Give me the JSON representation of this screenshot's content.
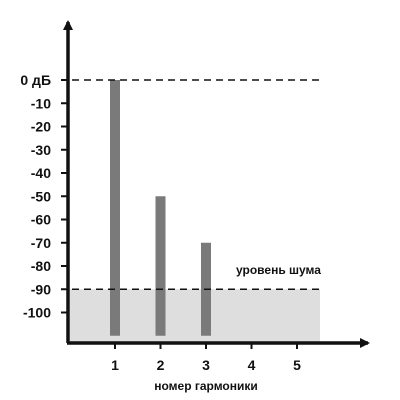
{
  "chart_data": {
    "type": "bar",
    "xlabel": "номер гармоники",
    "ylabel": "",
    "x_ticks": [
      "1",
      "2",
      "3",
      "4",
      "5"
    ],
    "y_ticks": [
      "0 дБ",
      "-10",
      "-20",
      "-30",
      "-40",
      "-50",
      "-60",
      "-70",
      "-80",
      "-90",
      "-100"
    ],
    "y_tick_values": [
      0,
      -10,
      -20,
      -30,
      -40,
      -50,
      -60,
      -70,
      -80,
      -90,
      -100
    ],
    "categories": [
      1,
      2,
      3
    ],
    "values": [
      0,
      -50,
      -70
    ],
    "bar_base": -110,
    "ylim": [
      -110,
      0
    ],
    "noise_floor": {
      "label": "уровень шума",
      "value": -90
    },
    "reference_line_value": 0,
    "grid": false,
    "colors": {
      "bar": "#7a7a7a",
      "noise_region": "#dedede",
      "axis": "#111111"
    }
  }
}
